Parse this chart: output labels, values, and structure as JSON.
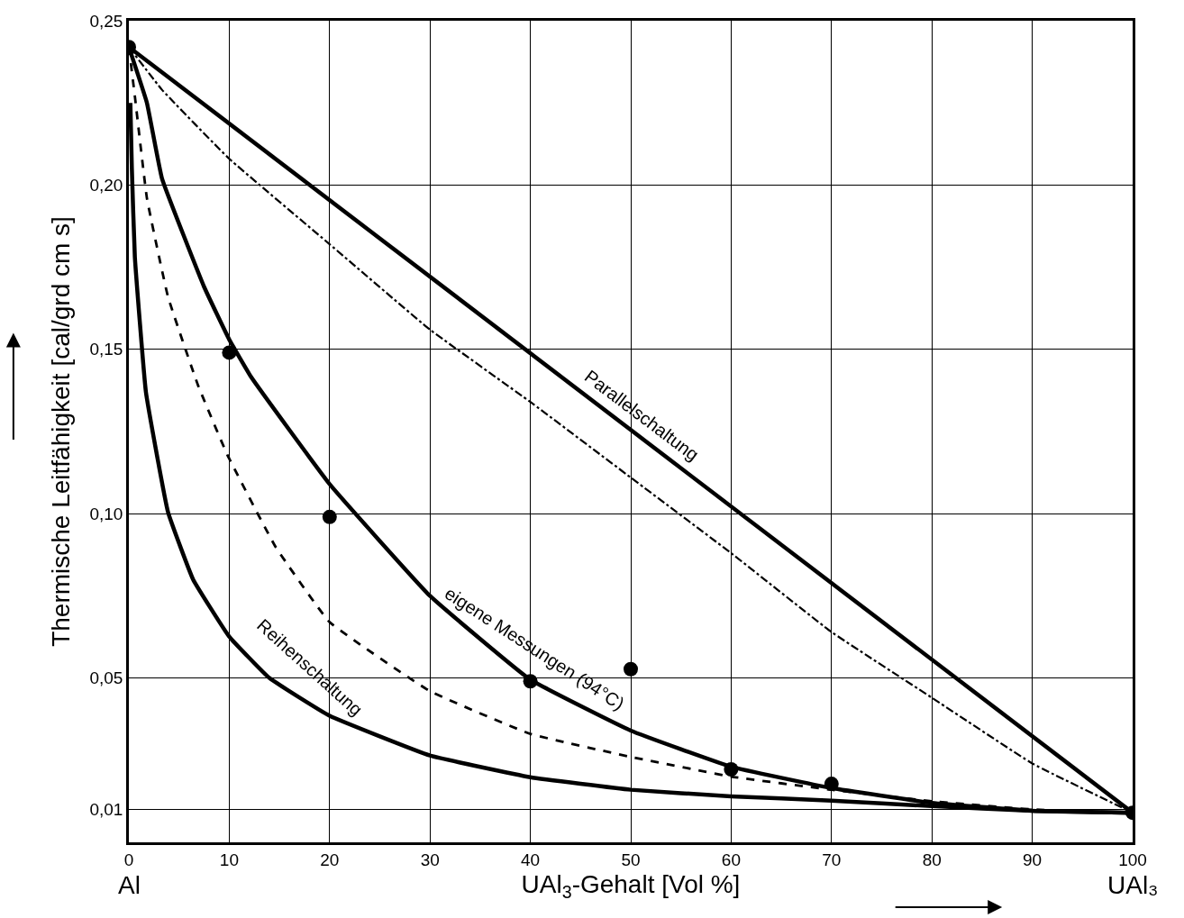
{
  "chart_data": {
    "type": "line",
    "xlabel": "UAl$_{3}$-Gehalt [Vol %]",
    "ylabel": "Thermische Leitfähigkeit [cal/grd cm s]",
    "annotations": [
      "Al",
      "UAl₃"
    ],
    "xlim": [
      0,
      100
    ],
    "xticks": [
      0,
      10,
      20,
      30,
      40,
      50,
      60,
      70,
      80,
      90,
      100
    ],
    "ylim": [
      0,
      0.25
    ],
    "yticks": [
      {
        "value": 0.01,
        "label": "0,01"
      },
      {
        "value": 0.05,
        "label": "0,05"
      },
      {
        "value": 0.1,
        "label": "0,10"
      },
      {
        "value": 0.15,
        "label": "0,15"
      },
      {
        "value": 0.2,
        "label": "0,20"
      },
      {
        "value": 0.25,
        "label": "0,25"
      }
    ],
    "grid": true,
    "legend": false,
    "marker": "none",
    "series": [
      {
        "name": "Parallelschaltung",
        "color": "#000000",
        "line_style": "solid",
        "x": [
          0,
          100
        ],
        "values": [
          0.242,
          0.009
        ]
      },
      {
        "color": "#000000",
        "line_style": "dashdot",
        "x": [
          0,
          3.3,
          10,
          20,
          30,
          40,
          50,
          60,
          70,
          80,
          90,
          100
        ],
        "values": [
          0.242,
          0.229,
          0.208,
          0.182,
          0.156,
          0.134,
          0.111,
          0.088,
          0.064,
          0.044,
          0.024,
          0.009
        ]
      },
      {
        "name": "eigene Messungen (94°C)",
        "color": "#000000",
        "line_style": "solid",
        "x": [
          0,
          1.8,
          3.3,
          7.5,
          10,
          12.2,
          20,
          30,
          40,
          50,
          60,
          70,
          80,
          90,
          100
        ],
        "values": [
          0.242,
          0.225,
          0.202,
          0.169,
          0.153,
          0.1415,
          0.109,
          0.075,
          0.0495,
          0.034,
          0.023,
          0.0165,
          0.012,
          0.0096,
          0.009
        ]
      },
      {
        "color": "#000000",
        "line_style": "dashed",
        "x": [
          0,
          0.6,
          1.8,
          3.9,
          6.9,
          9.8,
          14.6,
          20,
          30,
          40,
          50,
          60,
          70,
          80,
          90,
          100
        ],
        "values": [
          0.242,
          0.227,
          0.196,
          0.166,
          0.139,
          0.118,
          0.09,
          0.067,
          0.046,
          0.033,
          0.026,
          0.02,
          0.016,
          0.0125,
          0.01,
          0.009
        ]
      },
      {
        "name": "Reihenschaltung",
        "color": "#000000",
        "line_style": "solid",
        "x": [
          0.15,
          0.3,
          0.6,
          1.7,
          3.9,
          6.4,
          10,
          14,
          20,
          30,
          40,
          50,
          60,
          70,
          80,
          90,
          100
        ],
        "values": [
          0.225,
          0.205,
          0.178,
          0.137,
          0.1005,
          0.08,
          0.0626,
          0.05,
          0.0385,
          0.0264,
          0.0198,
          0.016,
          0.014,
          0.0127,
          0.011,
          0.0096,
          0.009
        ]
      },
      {
        "type": "scatter",
        "marker": "circle",
        "color": "#000000",
        "x": [
          0,
          10,
          20,
          40,
          50,
          60,
          70,
          100
        ],
        "values": [
          0.242,
          0.149,
          0.099,
          0.049,
          0.0527,
          0.0222,
          0.0178,
          0.009
        ]
      }
    ]
  }
}
